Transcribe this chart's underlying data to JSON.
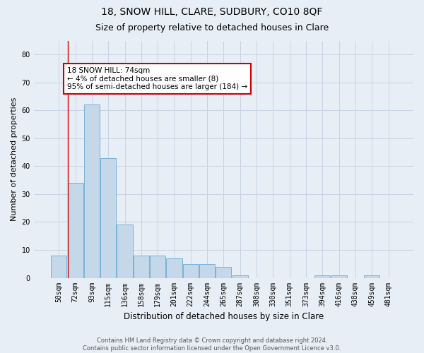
{
  "title1": "18, SNOW HILL, CLARE, SUDBURY, CO10 8QF",
  "title2": "Size of property relative to detached houses in Clare",
  "xlabel": "Distribution of detached houses by size in Clare",
  "ylabel": "Number of detached properties",
  "categories": [
    "50sqm",
    "72sqm",
    "93sqm",
    "115sqm",
    "136sqm",
    "158sqm",
    "179sqm",
    "201sqm",
    "222sqm",
    "244sqm",
    "265sqm",
    "287sqm",
    "308sqm",
    "330sqm",
    "351sqm",
    "373sqm",
    "394sqm",
    "416sqm",
    "438sqm",
    "459sqm",
    "481sqm"
  ],
  "values": [
    8,
    34,
    62,
    43,
    19,
    8,
    8,
    7,
    5,
    5,
    4,
    1,
    0,
    0,
    0,
    0,
    1,
    1,
    0,
    1,
    0
  ],
  "bar_color": "#c5d8ea",
  "bar_edge_color": "#6aaad4",
  "annotation_text": "18 SNOW HILL: 74sqm\n← 4% of detached houses are smaller (8)\n95% of semi-detached houses are larger (184) →",
  "annotation_box_color": "#ffffff",
  "annotation_box_edge_color": "#cc0000",
  "red_line_bar_index": 1,
  "ylim": [
    0,
    85
  ],
  "yticks": [
    0,
    10,
    20,
    30,
    40,
    50,
    60,
    70,
    80
  ],
  "grid_color": "#c8d4e4",
  "background_color": "#e8eef6",
  "footer_text": "Contains HM Land Registry data © Crown copyright and database right 2024.\nContains public sector information licensed under the Open Government Licence v3.0.",
  "title1_fontsize": 10,
  "title2_fontsize": 9,
  "xlabel_fontsize": 8.5,
  "ylabel_fontsize": 8,
  "tick_fontsize": 7,
  "annotation_fontsize": 7.5,
  "footer_fontsize": 6
}
